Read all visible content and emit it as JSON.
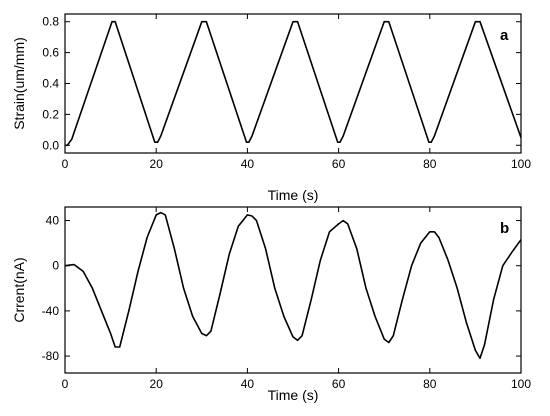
{
  "chart_data": [
    {
      "type": "line",
      "panel_label": "a",
      "xlabel": "Time  (s)",
      "ylabel": "Strain(um/mm)",
      "xlim": [
        0,
        100
      ],
      "ylim": [
        -0.05,
        0.85
      ],
      "x_ticks": [
        "0",
        "20",
        "40",
        "60",
        "80",
        "100"
      ],
      "y_ticks": [
        "0.0",
        "0.2",
        "0.4",
        "0.6",
        "0.8"
      ],
      "x_tick_values": [
        0,
        20,
        40,
        60,
        80,
        100
      ],
      "y_tick_values": [
        0.0,
        0.2,
        0.4,
        0.6,
        0.8
      ],
      "series": [
        {
          "x": [
            0,
            0.5,
            1.5,
            10.3,
            11.0,
            19.7,
            20.3,
            21.0,
            30.0,
            31.0,
            39.8,
            40.3,
            41.0,
            50.0,
            51.0,
            59.8,
            60.3,
            61.0,
            70.0,
            71.0,
            79.8,
            80.3,
            81.0,
            90.0,
            91.0,
            100
          ],
          "y": [
            0.0,
            0.0,
            0.04,
            0.8,
            0.8,
            0.02,
            0.02,
            0.06,
            0.8,
            0.8,
            0.02,
            0.02,
            0.06,
            0.8,
            0.8,
            0.02,
            0.02,
            0.06,
            0.8,
            0.8,
            0.02,
            0.02,
            0.06,
            0.8,
            0.8,
            0.05
          ]
        }
      ]
    },
    {
      "type": "line",
      "panel_label": "b",
      "xlabel": "Time  (s)",
      "ylabel": "Crrent(nA)",
      "xlim": [
        0,
        100
      ],
      "ylim": [
        -95,
        52
      ],
      "x_ticks": [
        "0",
        "20",
        "40",
        "60",
        "80",
        "100"
      ],
      "y_ticks": [
        "-80",
        "-40",
        "0",
        "40"
      ],
      "x_tick_values": [
        0,
        20,
        40,
        60,
        80,
        100
      ],
      "y_tick_values": [
        -80,
        -40,
        0,
        40
      ],
      "series": [
        {
          "x": [
            0,
            2,
            4,
            6,
            8,
            10,
            11,
            12,
            14,
            16,
            18,
            20,
            21,
            22,
            24,
            26,
            28,
            30,
            31,
            32,
            34,
            36,
            38,
            40,
            41,
            42,
            44,
            46,
            48,
            50,
            51,
            52,
            54,
            56,
            58,
            60,
            61,
            62,
            64,
            66,
            68,
            70,
            71,
            72,
            74,
            76,
            78,
            80,
            81,
            82,
            84,
            86,
            88,
            90,
            91,
            92,
            94,
            96,
            98,
            100
          ],
          "y": [
            0,
            1,
            -5,
            -20,
            -40,
            -60,
            -72,
            -72,
            -40,
            -5,
            25,
            45,
            47,
            45,
            15,
            -20,
            -45,
            -60,
            -62,
            -58,
            -25,
            10,
            35,
            45,
            44,
            40,
            15,
            -20,
            -45,
            -63,
            -66,
            -62,
            -30,
            5,
            30,
            37,
            40,
            37,
            15,
            -20,
            -45,
            -65,
            -68,
            -62,
            -30,
            0,
            20,
            30,
            30,
            25,
            5,
            -20,
            -50,
            -75,
            -82,
            -70,
            -30,
            0,
            12,
            23
          ]
        }
      ]
    }
  ]
}
